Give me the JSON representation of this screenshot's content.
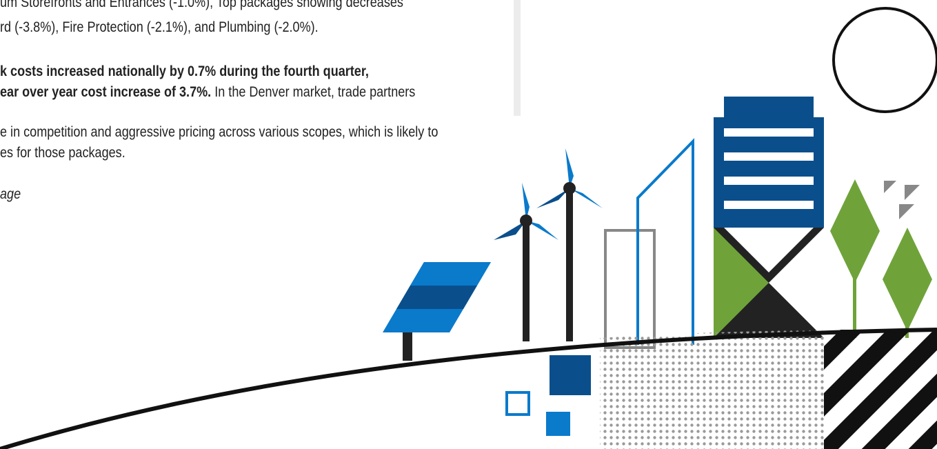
{
  "article": {
    "paragraph_1": [
      "um Storefronts and Entrances (-1.0%), Top packages showing decreases",
      "rd (-3.8%), Fire Protection (-2.1%), and Plumbing (-2.0%)."
    ],
    "paragraph_2": {
      "bold": [
        "k costs increased nationally by 0.7% during the fourth quarter,",
        "ear over year cost increase of 3.7%."
      ],
      "normal": [
        " In the Denver market, trade partners",
        "e in competition and aggressive pricing across various scopes, which is likely to",
        "es for those packages."
      ]
    },
    "caption": "age"
  }
}
